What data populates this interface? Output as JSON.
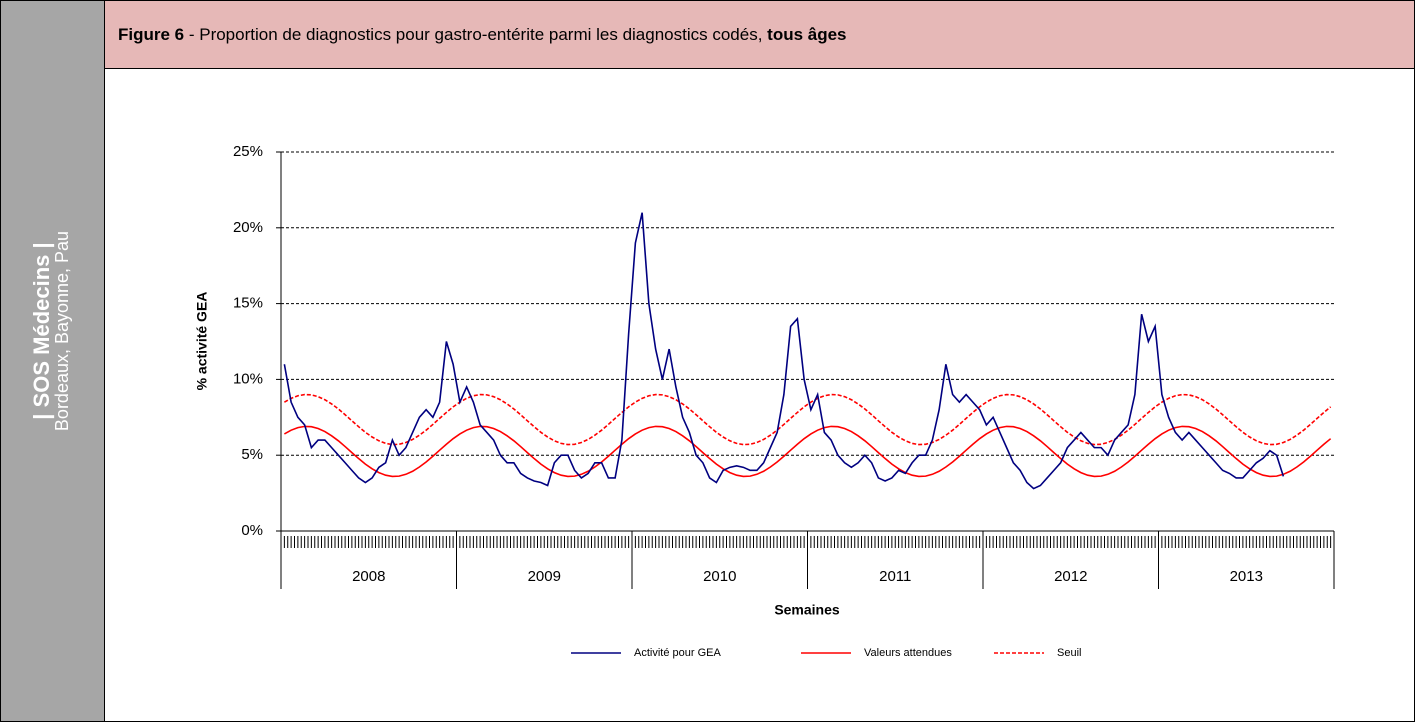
{
  "sidebar": {
    "title": "| SOS Médecins |",
    "subtitle": "Bordeaux, Bayonne, Pau"
  },
  "header": {
    "figure": "Figure 6",
    "title": " - Proportion de diagnostics pour gastro-entérite parmi les diagnostics codés, ",
    "emphasis": "tous âges"
  },
  "chart_data": {
    "type": "line",
    "ylabel": "% activité GEA",
    "xlabel": "Semaines",
    "groups": [
      "2008",
      "2009",
      "2010",
      "2011",
      "2012",
      "2013"
    ],
    "categories": [
      null,
      null,
      null,
      null,
      null,
      null,
      null,
      null,
      null,
      null,
      null,
      null,
      null,
      null,
      null,
      null,
      null,
      null,
      null,
      null,
      null,
      null,
      null,
      null,
      null,
      null,
      null,
      null,
      null,
      null,
      null,
      null,
      null,
      null,
      null,
      null,
      null,
      null,
      null,
      null,
      null,
      null,
      null,
      null,
      null,
      null,
      null,
      null,
      null,
      null,
      null,
      null,
      null,
      null,
      null,
      null,
      null,
      null,
      null,
      null,
      null,
      null,
      null,
      null,
      null,
      null,
      null,
      null,
      null,
      null,
      null,
      null,
      null,
      null,
      null,
      null,
      null,
      null,
      null,
      null,
      null,
      null,
      null,
      null,
      null,
      null,
      null,
      null,
      null,
      null,
      null,
      null,
      null,
      null,
      null,
      null,
      null,
      null,
      null,
      null,
      null,
      null,
      null,
      null,
      null,
      null,
      null,
      null,
      null,
      null,
      null,
      null,
      null,
      null,
      null,
      null,
      null,
      null,
      null,
      null,
      null,
      null,
      null,
      null,
      null,
      null,
      null,
      null,
      null,
      null,
      null,
      null,
      null,
      null,
      null,
      null,
      null,
      null,
      null,
      null,
      null,
      null,
      null,
      null,
      null,
      null,
      null,
      null,
      null,
      null,
      null,
      null,
      null,
      null,
      null,
      null
    ],
    "ylim": [
      0,
      25
    ],
    "yticks": [
      {
        "value": 0,
        "label": "0%"
      },
      {
        "value": 5,
        "label": "5%"
      },
      {
        "value": 10,
        "label": "10%"
      },
      {
        "value": 15,
        "label": "15%"
      },
      {
        "value": 20,
        "label": "20%"
      },
      {
        "value": 25,
        "label": "25%"
      }
    ],
    "grid": true,
    "series": [
      {
        "name": "Activité pour GEA",
        "color": "#000080",
        "dash": false,
        "values": [
          11,
          8.5,
          7.5,
          7,
          5.5,
          6,
          6,
          5.5,
          5,
          4.5,
          4,
          3.5,
          3.2,
          3.5,
          4.2,
          4.5,
          6,
          5,
          5.5,
          6.5,
          7.5,
          8,
          7.5,
          8.5,
          12.5,
          11,
          8.5,
          9.5,
          8.5,
          7,
          6.5,
          6,
          5,
          4.5,
          4.5,
          3.8,
          3.5,
          3.3,
          3.2,
          3,
          4.5,
          5,
          5,
          4,
          3.5,
          3.8,
          4.5,
          4.5,
          3.5,
          3.5,
          6,
          13,
          19,
          21,
          15,
          12,
          10,
          12,
          9.5,
          7.5,
          6.5,
          5,
          4.5,
          3.5,
          3.2,
          4,
          4.2,
          4.3,
          4.2,
          4,
          4,
          4.5,
          5.5,
          6.5,
          9,
          13.5,
          14,
          10,
          8,
          9,
          6.5,
          6,
          5,
          4.5,
          4.2,
          4.5,
          5,
          4.5,
          3.5,
          3.3,
          3.5,
          4,
          3.8,
          4.5,
          5,
          5,
          6,
          8,
          11,
          9,
          8.5,
          9,
          8.5,
          8,
          7,
          7.5,
          6.5,
          5.5,
          4.5,
          4,
          3.2,
          2.8,
          3,
          3.5,
          4,
          4.5,
          5.5,
          6,
          6.5,
          6,
          5.5,
          5.5,
          5,
          6,
          6.5,
          7,
          9,
          14.3,
          12.5,
          13.5,
          9,
          7.5,
          6.5,
          6,
          6.5,
          6,
          5.5,
          5,
          4.5,
          4,
          3.8,
          3.5,
          3.5,
          4,
          4.5,
          4.8,
          5.3,
          5,
          3.6,
          null,
          null,
          null,
          null,
          null,
          null,
          null
        ]
      },
      {
        "name": "Valeurs attendues",
        "color": "#ff0000",
        "dash": false,
        "values": [
          6.4,
          6.65,
          6.82,
          6.9,
          6.88,
          6.76,
          6.56,
          6.28,
          5.95,
          5.57,
          5.17,
          4.78,
          4.41,
          4.1,
          3.85,
          3.68,
          3.6,
          3.62,
          3.74,
          3.94,
          4.22,
          4.55,
          4.93,
          5.33,
          5.72,
          6.09,
          6.4,
          6.65,
          6.82,
          6.9,
          6.88,
          6.76,
          6.56,
          6.28,
          5.95,
          5.57,
          5.17,
          4.78,
          4.41,
          4.1,
          3.85,
          3.68,
          3.6,
          3.62,
          3.74,
          3.94,
          4.22,
          4.55,
          4.93,
          5.33,
          5.72,
          6.09,
          6.4,
          6.65,
          6.82,
          6.9,
          6.88,
          6.76,
          6.56,
          6.28,
          5.95,
          5.57,
          5.17,
          4.78,
          4.41,
          4.1,
          3.85,
          3.68,
          3.6,
          3.62,
          3.74,
          3.94,
          4.22,
          4.55,
          4.93,
          5.33,
          5.72,
          6.09,
          6.4,
          6.65,
          6.82,
          6.9,
          6.88,
          6.76,
          6.56,
          6.28,
          5.95,
          5.57,
          5.17,
          4.78,
          4.41,
          4.1,
          3.85,
          3.68,
          3.6,
          3.62,
          3.74,
          3.94,
          4.22,
          4.55,
          4.93,
          5.33,
          5.72,
          6.09,
          6.4,
          6.65,
          6.82,
          6.9,
          6.88,
          6.76,
          6.56,
          6.28,
          5.95,
          5.57,
          5.17,
          4.78,
          4.41,
          4.1,
          3.85,
          3.68,
          3.6,
          3.62,
          3.74,
          3.94,
          4.22,
          4.55,
          4.93,
          5.33,
          5.72,
          6.09,
          6.4,
          6.65,
          6.82,
          6.9,
          6.88,
          6.76,
          6.56,
          6.28,
          5.95,
          5.57,
          5.17,
          4.78,
          4.41,
          4.1,
          3.85,
          3.68,
          3.6,
          3.62,
          3.74,
          3.94,
          4.22,
          4.55,
          4.93,
          5.33,
          5.72,
          6.09
        ]
      },
      {
        "name": "Seuil",
        "color": "#ff0000",
        "dash": true,
        "values": [
          8.5,
          8.75,
          8.92,
          9.0,
          8.98,
          8.86,
          8.66,
          8.38,
          8.05,
          7.67,
          7.27,
          6.88,
          6.51,
          6.2,
          5.95,
          5.78,
          5.7,
          5.72,
          5.84,
          6.04,
          6.32,
          6.65,
          7.03,
          7.43,
          7.82,
          8.19,
          8.5,
          8.75,
          8.92,
          9.0,
          8.98,
          8.86,
          8.66,
          8.38,
          8.05,
          7.67,
          7.27,
          6.88,
          6.51,
          6.2,
          5.95,
          5.78,
          5.7,
          5.72,
          5.84,
          6.04,
          6.32,
          6.65,
          7.03,
          7.43,
          7.82,
          8.19,
          8.5,
          8.75,
          8.92,
          9.0,
          8.98,
          8.86,
          8.66,
          8.38,
          8.05,
          7.67,
          7.27,
          6.88,
          6.51,
          6.2,
          5.95,
          5.78,
          5.7,
          5.72,
          5.84,
          6.04,
          6.32,
          6.65,
          7.03,
          7.43,
          7.82,
          8.19,
          8.5,
          8.75,
          8.92,
          9.0,
          8.98,
          8.86,
          8.66,
          8.38,
          8.05,
          7.67,
          7.27,
          6.88,
          6.51,
          6.2,
          5.95,
          5.78,
          5.7,
          5.72,
          5.84,
          6.04,
          6.32,
          6.65,
          7.03,
          7.43,
          7.82,
          8.19,
          8.5,
          8.75,
          8.92,
          9.0,
          8.98,
          8.86,
          8.66,
          8.38,
          8.05,
          7.67,
          7.27,
          6.88,
          6.51,
          6.2,
          5.95,
          5.78,
          5.7,
          5.72,
          5.84,
          6.04,
          6.32,
          6.65,
          7.03,
          7.43,
          7.82,
          8.19,
          8.5,
          8.75,
          8.92,
          9.0,
          8.98,
          8.86,
          8.66,
          8.38,
          8.05,
          7.67,
          7.27,
          6.88,
          6.51,
          6.2,
          5.95,
          5.78,
          5.7,
          5.72,
          5.84,
          6.04,
          6.32,
          6.65,
          7.03,
          7.43,
          7.82,
          8.19
        ]
      }
    ]
  }
}
